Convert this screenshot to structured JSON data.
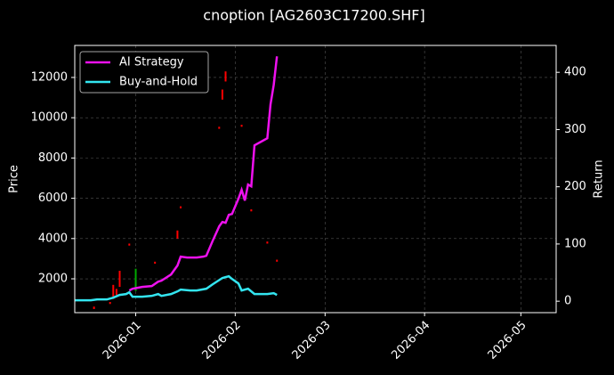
{
  "chart_data": {
    "type": "line",
    "title": "cnoption [AG2603C17200.SHF]",
    "ylabel": "Price",
    "y2label": "Return",
    "xlim": [
      -19,
      131
    ],
    "xticks": [
      {
        "value": 0,
        "label": "2026-01"
      },
      {
        "value": 31,
        "label": "2026-02"
      },
      {
        "value": 59,
        "label": "2026-03"
      },
      {
        "value": 90,
        "label": "2026-04"
      },
      {
        "value": 120,
        "label": "2026-05"
      }
    ],
    "ylim": [
      320,
      13590
    ],
    "yticks": [
      2000,
      4000,
      6000,
      8000,
      10000,
      12000
    ],
    "y2lim": [
      -20,
      447
    ],
    "y2ticks": [
      0,
      100,
      200,
      300,
      400
    ],
    "grid": true,
    "legend": "upper-left",
    "candles": {
      "x": [
        -13,
        -8,
        -7,
        -6,
        -5,
        -2,
        0,
        6,
        13,
        14,
        26,
        27,
        28,
        33,
        36,
        41,
        44
      ],
      "low": [
        500,
        750,
        1000,
        1200,
        1600,
        3650,
        1400,
        2750,
        4000,
        5500,
        9450,
        10900,
        11800,
        9550,
        5350,
        3750,
        2850
      ],
      "high": [
        620,
        850,
        1700,
        1500,
        2400,
        3750,
        2500,
        2850,
        4400,
        5600,
        9550,
        11400,
        12300,
        9650,
        5450,
        3850,
        2950
      ],
      "colors": [
        "#ff0000",
        "#ff0000",
        "#ff0000",
        "#ff0000",
        "#ff0000",
        "#ff0000",
        "#00aa00",
        "#ff0000",
        "#ff0000",
        "#ff0000",
        "#ff0000",
        "#ff0000",
        "#ff0000",
        "#ff0000",
        "#ff0000",
        "#ff0000",
        "#ff0000"
      ]
    },
    "series": [
      {
        "name": "AI Strategy",
        "color": "#ee11ee",
        "axis": "y2",
        "x": [
          -2,
          -1,
          2,
          5,
          7,
          8,
          11,
          13,
          14,
          16,
          19,
          21,
          22,
          24,
          26,
          27,
          28,
          29,
          30,
          32,
          33,
          34,
          35,
          36,
          37,
          41,
          42,
          43,
          44
        ],
        "values": [
          18.7,
          21.8,
          24.9,
          26.5,
          34.2,
          35.8,
          46.7,
          62.3,
          77.8,
          76.3,
          76.3,
          77.8,
          79.4,
          105.8,
          130.7,
          138.5,
          137,
          151,
          152.5,
          179,
          194.6,
          175.9,
          203.9,
          200.8,
          272.4,
          284.8,
          344,
          378.2,
          428
        ]
      },
      {
        "name": "Buy-and-Hold",
        "color": "#33e5f0",
        "axis": "y2",
        "x": [
          -19,
          -14,
          -12,
          -9,
          -7,
          -5,
          -3,
          -2,
          -1,
          2,
          5,
          7,
          8,
          11,
          13,
          14,
          17,
          19,
          22,
          24,
          27,
          29,
          30,
          32,
          33,
          35,
          37,
          41,
          43,
          44
        ],
        "values": [
          1.6,
          1.6,
          3.1,
          3.1,
          6.2,
          10.9,
          12.5,
          15.6,
          7.8,
          7.8,
          9.3,
          12.5,
          9.3,
          12.5,
          17.1,
          20.2,
          18.7,
          18.7,
          21.8,
          29.6,
          40.5,
          43.6,
          38.9,
          31.1,
          18.7,
          21.8,
          12.5,
          12.5,
          14,
          10.9
        ]
      }
    ]
  }
}
